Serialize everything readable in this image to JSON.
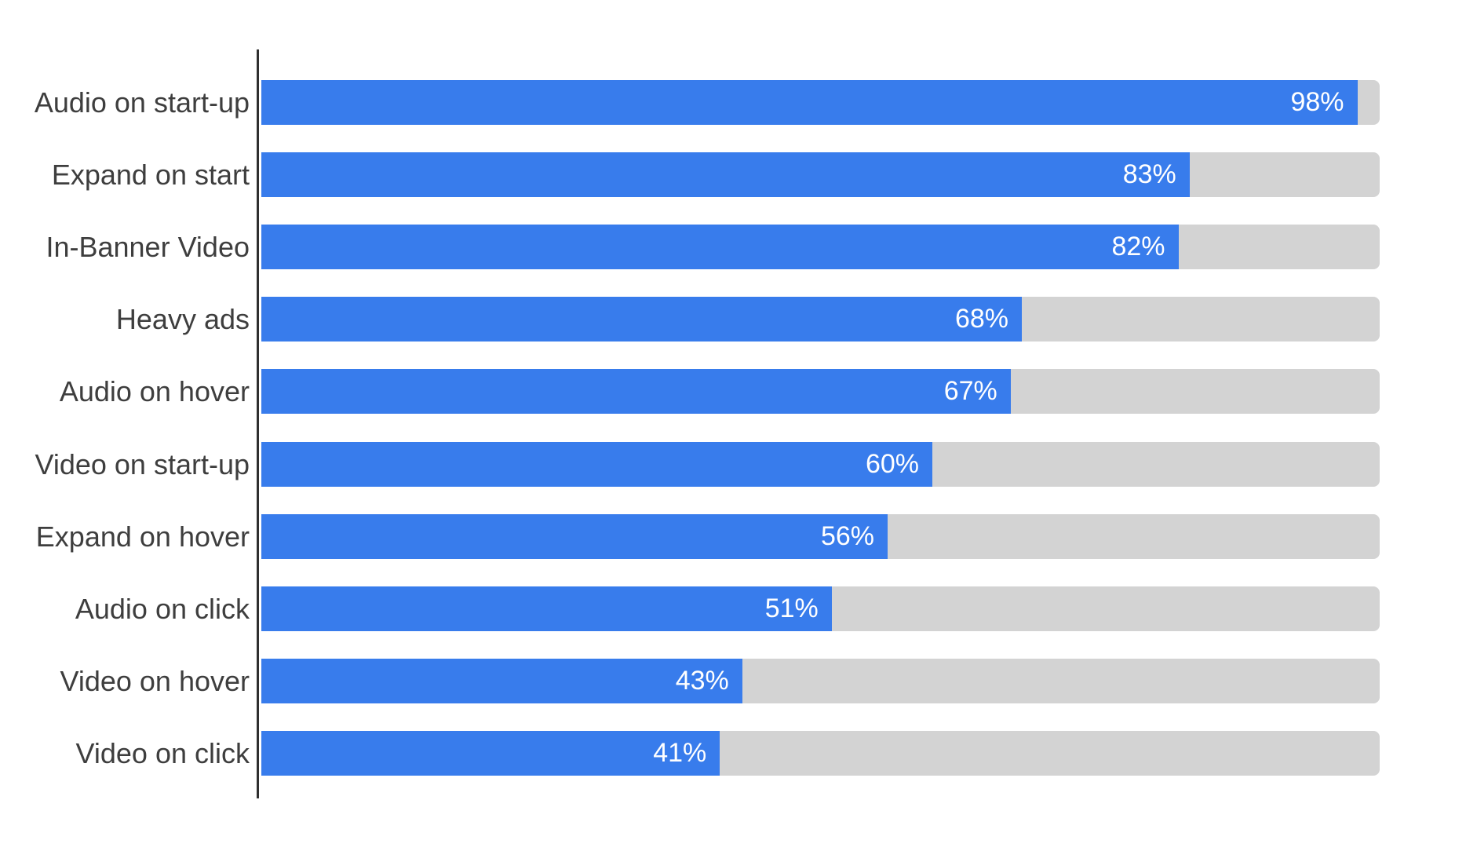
{
  "chart_data": {
    "type": "bar",
    "orientation": "horizontal",
    "title": "",
    "xlabel": "",
    "ylabel": "",
    "xlim": [
      0,
      100
    ],
    "grid": false,
    "legend": false,
    "categories": [
      "Audio on start-up",
      "Expand on start",
      "In-Banner Video",
      "Heavy ads",
      "Audio on hover",
      "Video on start-up",
      "Expand on hover",
      "Audio on click",
      "Video on hover",
      "Video on click"
    ],
    "values": [
      98,
      83,
      82,
      68,
      67,
      60,
      56,
      51,
      43,
      41
    ],
    "value_labels": [
      "98%",
      "83%",
      "82%",
      "68%",
      "67%",
      "60%",
      "56%",
      "51%",
      "43%",
      "41%"
    ],
    "colors": {
      "background": "#ffffff",
      "bar_fill": "#387cec",
      "bar_track": "#d3d3d3",
      "axis_line": "#2f2f2f",
      "category_label_text": "#3e3e3e",
      "value_label_text": "#ffffff"
    }
  }
}
